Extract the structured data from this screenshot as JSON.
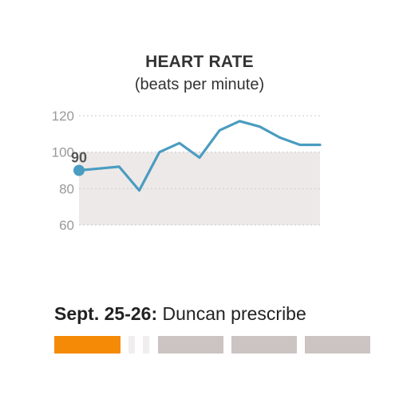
{
  "chart_data": {
    "type": "line",
    "title": "HEART RATE",
    "subtitle": "(beats per minute)",
    "ylim": [
      60,
      120
    ],
    "yticks": [
      "120",
      "100",
      "80",
      "60"
    ],
    "grid": true,
    "normal_range": [
      60,
      100
    ],
    "series": [
      {
        "values": [
          90,
          91,
          92,
          79,
          100,
          105,
          97,
          112,
          117,
          114,
          108,
          104,
          104
        ]
      }
    ],
    "start_label": "90",
    "colors": {
      "line": "#4a9cc0",
      "band": "#ede9e8",
      "grid": "#cccccc",
      "tick": "#999999"
    }
  },
  "story": {
    "date": "Sept. 25-26:",
    "text": " Duncan prescribe"
  },
  "timeline": {
    "segments": [
      {
        "state": "active",
        "color": "#f58a07"
      },
      {
        "state": "gap",
        "color": "#f0eeee"
      },
      {
        "state": "gap",
        "color": "#f0eeee"
      },
      {
        "state": "inactive",
        "color": "#cbc4c2"
      },
      {
        "state": "inactive",
        "color": "#cbc4c2"
      },
      {
        "state": "inactive",
        "color": "#cbc4c2"
      }
    ]
  }
}
